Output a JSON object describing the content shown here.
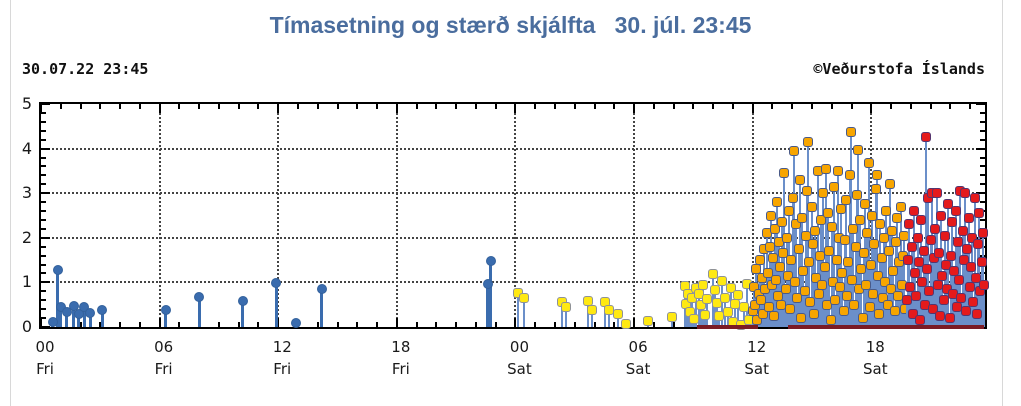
{
  "page": {
    "title": "Tímasetning og stærð skjálfta   30. júl. 23:45",
    "title_color": "#4a6d9e",
    "timestamp": "30.07.22 23:45",
    "copyright": "©Veðurstofa Íslands"
  },
  "chart_data": {
    "type": "scatter",
    "subtype": "stem-lollipop",
    "title": "Tímasetning og stærð skjálfta 30. júl. 23:45",
    "xlabel": "",
    "ylabel": "",
    "x_unit": "hours since Friday 00:00",
    "xlim": [
      0,
      47.75
    ],
    "ylim": [
      0,
      5
    ],
    "grid": true,
    "legend": "none",
    "x_major_ticks": [
      {
        "t": 0,
        "hour": "00",
        "day": "Fri"
      },
      {
        "t": 6,
        "hour": "06",
        "day": "Fri"
      },
      {
        "t": 12,
        "hour": "12",
        "day": "Fri"
      },
      {
        "t": 18,
        "hour": "18",
        "day": "Fri"
      },
      {
        "t": 24,
        "hour": "00",
        "day": "Sat"
      },
      {
        "t": 30,
        "hour": "06",
        "day": "Sat"
      },
      {
        "t": 36,
        "hour": "12",
        "day": "Sat"
      },
      {
        "t": 42,
        "hour": "18",
        "day": "Sat"
      }
    ],
    "x_minor_step": 1,
    "y_major_ticks": [
      0,
      1,
      2,
      3,
      4,
      5
    ],
    "y_minor_step": 0.2,
    "baseline_strip_color": "#7a1b25",
    "baseline_strips": [
      [
        33.2,
        36.25
      ],
      [
        37.8,
        47.72
      ]
    ],
    "series": [
      {
        "name": "blue",
        "fill": "#3a6cae",
        "outline": "#33619c",
        "stem": "#3a6cae",
        "stem_w": 3,
        "shape": "circle",
        "points": [
          [
            0.6,
            0.12
          ],
          [
            0.85,
            1.28
          ],
          [
            1.0,
            0.45
          ],
          [
            1.3,
            0.34
          ],
          [
            1.65,
            0.47
          ],
          [
            1.9,
            0.3
          ],
          [
            2.2,
            0.44
          ],
          [
            2.5,
            0.32
          ],
          [
            3.1,
            0.38
          ],
          [
            6.3,
            0.39
          ],
          [
            8.0,
            0.67
          ],
          [
            10.2,
            0.58
          ],
          [
            11.9,
            0.99
          ],
          [
            12.9,
            0.1
          ],
          [
            14.2,
            0.86
          ],
          [
            22.6,
            0.97
          ],
          [
            22.75,
            1.49
          ]
        ]
      },
      {
        "name": "yellow",
        "fill": "#ffe912",
        "outline": "#8f9296",
        "stem": "#6b8fc9",
        "stem_w": 2,
        "shape": "square",
        "points": [
          [
            24.15,
            0.77
          ],
          [
            24.45,
            0.65
          ],
          [
            26.35,
            0.57
          ],
          [
            26.55,
            0.45
          ],
          [
            27.65,
            0.58
          ],
          [
            27.85,
            0.39
          ],
          [
            28.55,
            0.57
          ],
          [
            28.75,
            0.38
          ],
          [
            29.2,
            0.3
          ],
          [
            29.6,
            0.06
          ],
          [
            30.7,
            0.13
          ],
          [
            31.9,
            0.22
          ],
          [
            32.55,
            0.93
          ],
          [
            32.65,
            0.52
          ],
          [
            32.75,
            0.74
          ],
          [
            32.85,
            0.33
          ],
          [
            32.95,
            0.64
          ],
          [
            33.05,
            0.18
          ],
          [
            33.15,
            0.88
          ],
          [
            33.3,
            0.73
          ],
          [
            33.4,
            0.49
          ],
          [
            33.5,
            0.95
          ],
          [
            33.6,
            0.28
          ],
          [
            33.7,
            0.62
          ],
          [
            34.0,
            1.18
          ],
          [
            34.1,
            0.84
          ],
          [
            34.2,
            0.54
          ],
          [
            34.3,
            0.24
          ],
          [
            34.45,
            1.04
          ],
          [
            34.6,
            0.66
          ],
          [
            34.75,
            0.34
          ],
          [
            34.9,
            0.88
          ],
          [
            35.0,
            0.12
          ],
          [
            35.1,
            0.52
          ],
          [
            35.25,
            0.71
          ],
          [
            35.4,
            0.05
          ],
          [
            35.55,
            0.44
          ],
          [
            35.7,
            0.97
          ],
          [
            35.8,
            0.15
          ]
        ]
      },
      {
        "name": "orange",
        "fill": "#f7a500",
        "outline": "#4a5a87",
        "stem": "#6b8fc9",
        "stem_w": 2,
        "shape": "square",
        "points": [
          [
            36.02,
            0.35
          ],
          [
            36.08,
            0.9
          ],
          [
            36.13,
            0.5
          ],
          [
            36.18,
            1.3
          ],
          [
            36.24,
            0.15
          ],
          [
            36.3,
            0.75
          ],
          [
            36.36,
            1.5
          ],
          [
            36.42,
            0.6
          ],
          [
            36.48,
            1.1
          ],
          [
            36.53,
            0.3
          ],
          [
            36.58,
            1.75
          ],
          [
            36.63,
            0.85
          ],
          [
            36.7,
            2.1
          ],
          [
            36.75,
            1.2
          ],
          [
            36.8,
            0.45
          ],
          [
            36.86,
            1.8
          ],
          [
            36.92,
            2.5
          ],
          [
            36.98,
            0.95
          ],
          [
            37.03,
            1.55
          ],
          [
            37.08,
            0.25
          ],
          [
            37.13,
            2.2
          ],
          [
            37.18,
            1.05
          ],
          [
            37.24,
            2.8
          ],
          [
            37.3,
            0.7
          ],
          [
            37.35,
            1.9
          ],
          [
            37.4,
            1.35
          ],
          [
            37.45,
            0.5
          ],
          [
            37.5,
            2.35
          ],
          [
            37.55,
            1.65
          ],
          [
            37.6,
            3.45
          ],
          [
            37.66,
            0.85
          ],
          [
            37.72,
            2.0
          ],
          [
            37.78,
            1.15
          ],
          [
            37.84,
            2.6
          ],
          [
            37.9,
            0.4
          ],
          [
            37.96,
            1.5
          ],
          [
            38.02,
            2.9
          ],
          [
            38.08,
            3.95
          ],
          [
            38.14,
            1.0
          ],
          [
            38.2,
            2.3
          ],
          [
            38.26,
            0.65
          ],
          [
            38.32,
            1.75
          ],
          [
            38.38,
            3.3
          ],
          [
            38.44,
            0.2
          ],
          [
            38.5,
            2.45
          ],
          [
            38.56,
            1.25
          ],
          [
            38.62,
            0.8
          ],
          [
            38.68,
            2.05
          ],
          [
            38.74,
            3.05
          ],
          [
            38.8,
            4.15
          ],
          [
            38.86,
            1.45
          ],
          [
            38.92,
            0.55
          ],
          [
            38.98,
            2.7
          ],
          [
            39.04,
            1.85
          ],
          [
            39.1,
            0.3
          ],
          [
            39.16,
            2.15
          ],
          [
            39.22,
            1.1
          ],
          [
            39.28,
            3.5
          ],
          [
            39.34,
            0.75
          ],
          [
            39.4,
            1.6
          ],
          [
            39.46,
            2.4
          ],
          [
            39.52,
            0.95
          ],
          [
            39.58,
            3.0
          ],
          [
            39.64,
            1.35
          ],
          [
            39.7,
            3.55
          ],
          [
            39.76,
            0.5
          ],
          [
            39.82,
            2.55
          ],
          [
            39.88,
            1.7
          ],
          [
            39.94,
            0.15
          ],
          [
            40.0,
            2.25
          ],
          [
            40.06,
            1.0
          ],
          [
            40.12,
            3.15
          ],
          [
            40.18,
            0.6
          ],
          [
            40.24,
            1.5
          ],
          [
            40.3,
            3.5
          ],
          [
            40.36,
            2.0
          ],
          [
            40.42,
            0.9
          ],
          [
            40.48,
            2.65
          ],
          [
            40.54,
            1.2
          ],
          [
            40.6,
            0.35
          ],
          [
            40.66,
            1.95
          ],
          [
            40.72,
            2.85
          ],
          [
            40.78,
            0.7
          ],
          [
            40.84,
            1.45
          ],
          [
            40.9,
            3.4
          ],
          [
            40.96,
            4.37
          ],
          [
            41.02,
            1.05
          ],
          [
            41.08,
            2.2
          ],
          [
            41.14,
            0.5
          ],
          [
            41.2,
            1.8
          ],
          [
            41.26,
            2.95
          ],
          [
            41.32,
            3.97
          ],
          [
            41.38,
            0.85
          ],
          [
            41.44,
            2.4
          ],
          [
            41.5,
            1.3
          ],
          [
            41.56,
            0.2
          ],
          [
            41.62,
            1.65
          ],
          [
            41.68,
            2.75
          ],
          [
            41.74,
            0.95
          ],
          [
            41.8,
            2.1
          ],
          [
            41.86,
            3.68
          ],
          [
            41.92,
            0.45
          ],
          [
            41.98,
            1.4
          ],
          [
            42.04,
            2.5
          ],
          [
            42.1,
            0.75
          ],
          [
            42.16,
            1.85
          ],
          [
            42.22,
            3.1
          ],
          [
            42.28,
            3.4
          ],
          [
            42.34,
            1.15
          ],
          [
            42.4,
            0.3
          ],
          [
            42.46,
            2.3
          ],
          [
            42.52,
            1.55
          ],
          [
            42.58,
            0.65
          ],
          [
            42.64,
            2.0
          ],
          [
            42.7,
            1.0
          ],
          [
            42.76,
            2.6
          ],
          [
            42.82,
            0.5
          ],
          [
            42.88,
            1.7
          ],
          [
            42.94,
            3.2
          ],
          [
            43.0,
            0.85
          ],
          [
            43.06,
            2.15
          ],
          [
            43.12,
            1.25
          ],
          [
            43.18,
            0.35
          ],
          [
            43.24,
            1.9
          ],
          [
            43.3,
            2.45
          ],
          [
            43.36,
            0.7
          ],
          [
            43.42,
            1.45
          ],
          [
            43.48,
            2.7
          ],
          [
            43.54,
            0.95
          ],
          [
            43.6,
            1.6
          ],
          [
            43.66,
            2.05
          ],
          [
            43.72,
            0.4
          ]
        ]
      },
      {
        "name": "red",
        "fill": "#e41a1c",
        "outline": "#55356e",
        "stem": "#6b8fc9",
        "stem_w": 2,
        "shape": "square",
        "points": [
          [
            43.8,
            0.6
          ],
          [
            43.86,
            1.5
          ],
          [
            43.92,
            2.3
          ],
          [
            43.98,
            0.9
          ],
          [
            44.04,
            1.8
          ],
          [
            44.1,
            0.3
          ],
          [
            44.16,
            2.6
          ],
          [
            44.22,
            1.2
          ],
          [
            44.28,
            0.7
          ],
          [
            44.34,
            2.0
          ],
          [
            44.4,
            1.45
          ],
          [
            44.46,
            0.15
          ],
          [
            44.52,
            2.4
          ],
          [
            44.58,
            1.0
          ],
          [
            44.64,
            1.7
          ],
          [
            44.7,
            0.5
          ],
          [
            44.76,
            4.26
          ],
          [
            44.82,
            1.3
          ],
          [
            44.88,
            2.9
          ],
          [
            44.94,
            0.8
          ],
          [
            45.0,
            1.95
          ],
          [
            45.06,
            3.0
          ],
          [
            45.12,
            0.4
          ],
          [
            45.18,
            1.55
          ],
          [
            45.24,
            2.2
          ],
          [
            45.3,
            3.0
          ],
          [
            45.36,
            0.95
          ],
          [
            45.42,
            1.65
          ],
          [
            45.48,
            0.25
          ],
          [
            45.54,
            2.5
          ],
          [
            45.6,
            1.15
          ],
          [
            45.66,
            0.6
          ],
          [
            45.72,
            2.05
          ],
          [
            45.78,
            1.4
          ],
          [
            45.84,
            0.85
          ],
          [
            45.9,
            2.75
          ],
          [
            45.96,
            0.2
          ],
          [
            46.02,
            1.6
          ],
          [
            46.08,
            2.35
          ],
          [
            46.14,
            0.75
          ],
          [
            46.2,
            1.25
          ],
          [
            46.26,
            2.6
          ],
          [
            46.32,
            0.45
          ],
          [
            46.38,
            1.9
          ],
          [
            46.44,
            1.05
          ],
          [
            46.5,
            3.05
          ],
          [
            46.56,
            0.65
          ],
          [
            46.62,
            2.15
          ],
          [
            46.68,
            1.5
          ],
          [
            46.74,
            3.0
          ],
          [
            46.8,
            0.35
          ],
          [
            46.86,
            1.75
          ],
          [
            46.92,
            2.45
          ],
          [
            46.98,
            0.9
          ],
          [
            47.04,
            1.35
          ],
          [
            47.1,
            2.0
          ],
          [
            47.16,
            0.55
          ],
          [
            47.22,
            2.9
          ],
          [
            47.28,
            1.1
          ],
          [
            47.34,
            0.3
          ],
          [
            47.4,
            1.85
          ],
          [
            47.46,
            2.55
          ],
          [
            47.52,
            0.8
          ],
          [
            47.58,
            1.45
          ],
          [
            47.64,
            2.1
          ],
          [
            47.7,
            0.95
          ]
        ]
      }
    ]
  }
}
